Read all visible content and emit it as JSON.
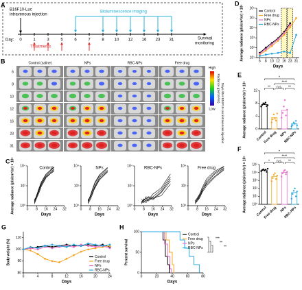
{
  "timeline": {
    "label": "A",
    "injection": [
      "B16F10-Luc",
      "intravenous injection"
    ],
    "treatments": "Treatments",
    "imaging": "Bioluminescence imaging",
    "survival": [
      "Survival",
      "monitoring"
    ],
    "day_label": "Day:",
    "days": [
      0,
      1,
      3,
      5,
      6,
      7,
      8,
      10,
      12,
      16,
      23,
      31
    ]
  },
  "imaging": {
    "label": "B",
    "columns": [
      "Control (saline)",
      "NPs",
      "RBC-NPs",
      "Free drug"
    ],
    "days": [
      6,
      8,
      10,
      12,
      16,
      23,
      31
    ],
    "axis_label": "Days after B16F10-Luc intravenous injection",
    "colorbar": {
      "high": "High",
      "low": "Low",
      "title": "Radiance (p/s/cm²/sr)"
    }
  },
  "chart_data": [
    {
      "type": "line",
      "label": "C",
      "title": "Control",
      "y_label": "Average radiance (p/s/cm²/sr) × 10⁵",
      "x_label": "Days",
      "log_y": true,
      "x": [
        6,
        8,
        10,
        12,
        16,
        23,
        31
      ],
      "xlim": [
        0,
        32
      ],
      "xticks": [
        0,
        8,
        16,
        24,
        32
      ],
      "ylim": [
        1,
        10000
      ],
      "yticks": [
        {
          "value": 1,
          "label": "10⁰"
        },
        {
          "value": 100,
          "label": "10²"
        },
        {
          "value": 10000,
          "label": "10⁴"
        }
      ],
      "series": [
        {
          "color": "#000000",
          "values": [
            2,
            8,
            30,
            150,
            900,
            5000,
            null
          ]
        },
        {
          "color": "#000000",
          "values": [
            3,
            10,
            45,
            200,
            1200,
            7000,
            null
          ]
        },
        {
          "color": "#000000",
          "values": [
            1.5,
            6,
            20,
            90,
            600,
            4000,
            null
          ]
        },
        {
          "color": "#000000",
          "values": [
            2.5,
            12,
            60,
            250,
            1500,
            8000,
            null
          ]
        },
        {
          "color": "#000000",
          "values": [
            4,
            9,
            35,
            120,
            800,
            3000,
            null
          ]
        }
      ]
    },
    {
      "type": "line",
      "title": "NPs",
      "x_label": "Days",
      "log_y": true,
      "x": [
        6,
        8,
        10,
        12,
        16,
        23,
        31
      ],
      "xlim": [
        0,
        32
      ],
      "xticks": [
        0,
        8,
        16,
        24,
        32
      ],
      "ylim": [
        1,
        10000
      ],
      "yticks": [
        {
          "value": 1,
          "label": "10⁰"
        },
        {
          "value": 100,
          "label": "10²"
        },
        {
          "value": 10000,
          "label": "10⁴"
        }
      ],
      "series": [
        {
          "color": "#000000",
          "values": [
            2,
            6,
            25,
            100,
            700,
            4000,
            null
          ]
        },
        {
          "color": "#000000",
          "values": [
            3,
            9,
            40,
            180,
            1000,
            6000,
            null
          ]
        },
        {
          "color": "#000000",
          "values": [
            1.5,
            4,
            15,
            80,
            500,
            3000,
            null
          ]
        },
        {
          "color": "#000000",
          "values": [
            2,
            10,
            50,
            220,
            1300,
            7000,
            null
          ]
        },
        {
          "color": "#000000",
          "values": [
            4,
            7,
            20,
            60,
            400,
            2500,
            null
          ]
        }
      ]
    },
    {
      "type": "line",
      "title": "RBC-NPs",
      "x_label": "Days",
      "log_y": true,
      "x": [
        6,
        8,
        10,
        12,
        16,
        23,
        31
      ],
      "xlim": [
        0,
        32
      ],
      "xticks": [
        0,
        8,
        16,
        24,
        32
      ],
      "ylim": [
        1,
        10000
      ],
      "yticks": [
        {
          "value": 1,
          "label": "10⁰"
        },
        {
          "value": 100,
          "label": "10²"
        },
        {
          "value": 10000,
          "label": "10⁴"
        }
      ],
      "series": [
        {
          "color": "#000000",
          "values": [
            2,
            3,
            2,
            5,
            4,
            20,
            300
          ]
        },
        {
          "color": "#000000",
          "values": [
            1.5,
            4,
            6,
            3,
            8,
            40,
            800
          ]
        },
        {
          "color": "#000000",
          "values": [
            3,
            2,
            4,
            8,
            6,
            10,
            150
          ]
        },
        {
          "color": "#000000",
          "values": [
            2,
            5,
            3,
            4,
            15,
            60,
            1500
          ]
        },
        {
          "color": "#000000",
          "values": [
            4,
            3,
            8,
            6,
            5,
            25,
            500
          ]
        }
      ]
    },
    {
      "type": "line",
      "title": "Free drug",
      "x_label": "Days",
      "log_y": true,
      "x": [
        6,
        8,
        10,
        12,
        16,
        23,
        31
      ],
      "xlim": [
        0,
        32
      ],
      "xticks": [
        0,
        8,
        16,
        24,
        32
      ],
      "ylim": [
        1,
        10000
      ],
      "yticks": [
        {
          "value": 1,
          "label": "10⁰"
        },
        {
          "value": 100,
          "label": "10²"
        },
        {
          "value": 10000,
          "label": "10⁴"
        }
      ],
      "series": [
        {
          "color": "#000000",
          "values": [
            2,
            4,
            10,
            40,
            300,
            2000,
            8000
          ]
        },
        {
          "color": "#000000",
          "values": [
            1.5,
            3,
            8,
            25,
            200,
            1500,
            6000
          ]
        },
        {
          "color": "#000000",
          "values": [
            3,
            6,
            15,
            60,
            500,
            3000,
            9000
          ]
        },
        {
          "color": "#000000",
          "values": [
            2,
            5,
            12,
            30,
            150,
            900,
            5000
          ]
        },
        {
          "color": "#000000",
          "values": [
            2.5,
            3,
            6,
            20,
            100,
            700,
            4000
          ]
        }
      ]
    },
    {
      "type": "line",
      "label": "D",
      "y_label": "Average radiance (p/s/cm²/sr) × 10⁵",
      "x_label": "Days",
      "log_y": true,
      "markers": true,
      "legend": "top-left",
      "categories": [
        "6",
        "8",
        "10",
        "12",
        "16",
        "23",
        "31"
      ],
      "ylim": [
        10,
        1000000
      ],
      "yticks": [
        {
          "value": 10,
          "label": "10¹"
        },
        {
          "value": 100,
          "label": "10²"
        },
        {
          "value": 1000,
          "label": "10³"
        },
        {
          "value": 10000,
          "label": "10⁴"
        },
        {
          "value": 100000,
          "label": "10⁵"
        },
        {
          "value": 1000000,
          "label": "10⁶"
        }
      ],
      "series": [
        {
          "name": "Control",
          "color": "#000000",
          "values": [
            30,
            100,
            300,
            900,
            4000,
            30000,
            null
          ]
        },
        {
          "name": "Free drug",
          "color": "#f5a623",
          "values": [
            20,
            50,
            150,
            500,
            2000,
            12000,
            100000
          ]
        },
        {
          "name": "NPs",
          "color": "#e86ec8",
          "values": [
            25,
            70,
            220,
            700,
            3000,
            20000,
            null
          ]
        },
        {
          "name": "RBC-NPs",
          "color": "#2aa7df",
          "values": [
            15,
            20,
            25,
            30,
            40,
            30,
            2000
          ]
        }
      ]
    },
    {
      "type": "bar",
      "label": "E",
      "y_label": "Average radiance (p/s/cm²/sr) × 10⁵",
      "categories": [
        "Control",
        "Free drug",
        "NPs",
        "RBC-NPs"
      ],
      "colors": [
        "#000000",
        "#f5a623",
        "#e86ec8",
        "#2aa7df"
      ],
      "values": [
        7.6,
        3.5,
        5.8,
        1.6
      ],
      "points": [
        [
          7,
          7.5,
          8,
          7.8,
          8.2,
          7.1,
          7.4
        ],
        [
          2,
          3,
          4.5,
          3.2,
          2.6,
          4.8
        ],
        [
          3.5,
          5,
          7,
          9,
          4.2,
          6
        ],
        [
          0.8,
          1.2,
          2,
          1.6,
          2.5,
          1.1
        ]
      ],
      "ylim": [
        0,
        12
      ],
      "yticks": [
        0,
        4,
        8,
        12
      ],
      "significance": [
        "*",
        "****",
        "**",
        "n.s.",
        "**"
      ]
    },
    {
      "type": "bar",
      "label": "F",
      "y_label": "Average radiance (p/s/cm²/sr) × 10⁵",
      "log_y": true,
      "categories": [
        "Control",
        "Free drug",
        "NPs",
        "RBC-NPs"
      ],
      "colors": [
        "#000000",
        "#f5a623",
        "#e86ec8",
        "#2aa7df"
      ],
      "values": [
        20000,
        3000,
        10000,
        30
      ],
      "points": [
        [
          15000,
          20000,
          25000,
          18000,
          22000,
          12000,
          30000
        ],
        [
          800,
          2000,
          5000,
          8000,
          1500,
          4000
        ],
        [
          3000,
          8000,
          15000,
          20000,
          6000,
          12000
        ],
        [
          5,
          20,
          50,
          100,
          10,
          40
        ]
      ],
      "ylim": [
        1,
        100000
      ],
      "yticks": [
        {
          "value": 1,
          "label": "10⁰"
        },
        {
          "value": 10,
          "label": "10¹"
        },
        {
          "value": 100,
          "label": "10²"
        },
        {
          "value": 1000,
          "label": "10³"
        },
        {
          "value": 10000,
          "label": "10⁴"
        },
        {
          "value": 100000,
          "label": "10⁵"
        }
      ],
      "significance": [
        "*",
        "****",
        "*",
        "n.s.",
        "**"
      ]
    },
    {
      "type": "line",
      "label": "G",
      "y_label": "Body weight (%)",
      "x_label": "Days",
      "markers": true,
      "legend": "bottom-right",
      "x": [
        0,
        2,
        4,
        6,
        8,
        10,
        12,
        14,
        16,
        18,
        20,
        22,
        24
      ],
      "xlim": [
        0,
        24
      ],
      "xticks": [
        0,
        4,
        8,
        12,
        16,
        20,
        24
      ],
      "ylim": [
        80,
        115
      ],
      "yticks": [
        80,
        90,
        100,
        110
      ],
      "series": [
        {
          "name": "Control",
          "color": "#000000",
          "values": [
            100,
            101,
            102,
            103,
            102,
            103,
            104,
            103,
            103,
            104,
            103,
            104,
            102
          ]
        },
        {
          "name": "Free drug",
          "color": "#f5a623",
          "values": [
            100,
            99,
            96,
            92,
            90,
            89,
            92,
            95,
            98,
            100,
            101,
            102,
            103
          ]
        },
        {
          "name": "NPs",
          "color": "#e86ec8",
          "values": [
            100,
            101,
            100,
            102,
            101,
            102,
            103,
            102,
            104,
            103,
            102,
            103,
            101
          ]
        },
        {
          "name": "RBC-NPs",
          "color": "#2aa7df",
          "values": [
            100,
            102,
            101,
            103,
            104,
            103,
            102,
            104,
            103,
            105,
            104,
            103,
            104
          ]
        }
      ]
    },
    {
      "type": "survival",
      "label": "H",
      "y_label": "Percent survival",
      "x_label": "Days",
      "legend": "top-right",
      "xlim": [
        0,
        80
      ],
      "xticks": [
        0,
        20,
        40,
        60,
        80
      ],
      "ylim": [
        0,
        100
      ],
      "yticks": [
        0,
        50,
        100
      ],
      "significance": [
        "***",
        "**",
        "**"
      ],
      "series": [
        {
          "name": "Control",
          "color": "#000000",
          "x": [
            0,
            28,
            31,
            34,
            36
          ],
          "values": [
            100,
            80,
            40,
            20,
            0
          ]
        },
        {
          "name": "Free drug",
          "color": "#f5a623",
          "x": [
            0,
            32,
            36,
            40,
            42
          ],
          "values": [
            100,
            80,
            50,
            20,
            0
          ]
        },
        {
          "name": "NPs",
          "color": "#e86ec8",
          "x": [
            0,
            30,
            34,
            37,
            39
          ],
          "values": [
            100,
            70,
            40,
            10,
            0
          ]
        },
        {
          "name": "RBC-NPs",
          "color": "#2aa7df",
          "x": [
            0,
            50,
            56,
            62,
            68,
            75
          ],
          "values": [
            100,
            80,
            60,
            40,
            20,
            0
          ]
        }
      ]
    }
  ]
}
